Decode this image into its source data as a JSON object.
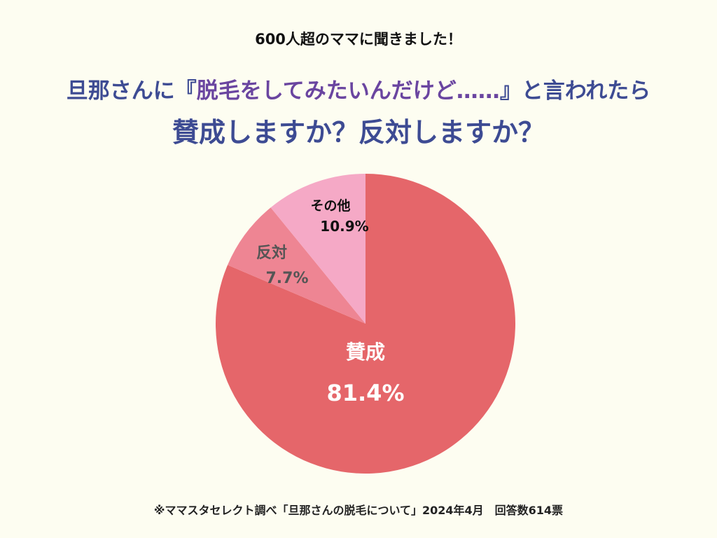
{
  "header": {
    "kicker": "600人超のママに聞きました！",
    "question_pre": "旦那さんに『",
    "question_highlight": "脱毛をしてみたいんだけど……",
    "question_post": "』と言われたら",
    "question_line2": "賛成しますか？反対しますか？"
  },
  "chart_data": {
    "type": "pie",
    "start": "top",
    "direction": "clockwise",
    "slices": [
      {
        "label": "賛成",
        "value": 81.4,
        "value_label": "81.4%",
        "color": "#e5666a",
        "text_color": "#ffffff"
      },
      {
        "label": "反対",
        "value": 7.7,
        "value_label": "7.7%",
        "color": "#ee8593",
        "text_color": "#555555"
      },
      {
        "label": "その他",
        "value": 10.9,
        "value_label": "10.9%",
        "color": "#f5a9c6",
        "text_color": "#111111"
      }
    ]
  },
  "footer": "※ママスタセレクト調べ「旦那さんの脱毛について」2024年4月　回答数614票"
}
